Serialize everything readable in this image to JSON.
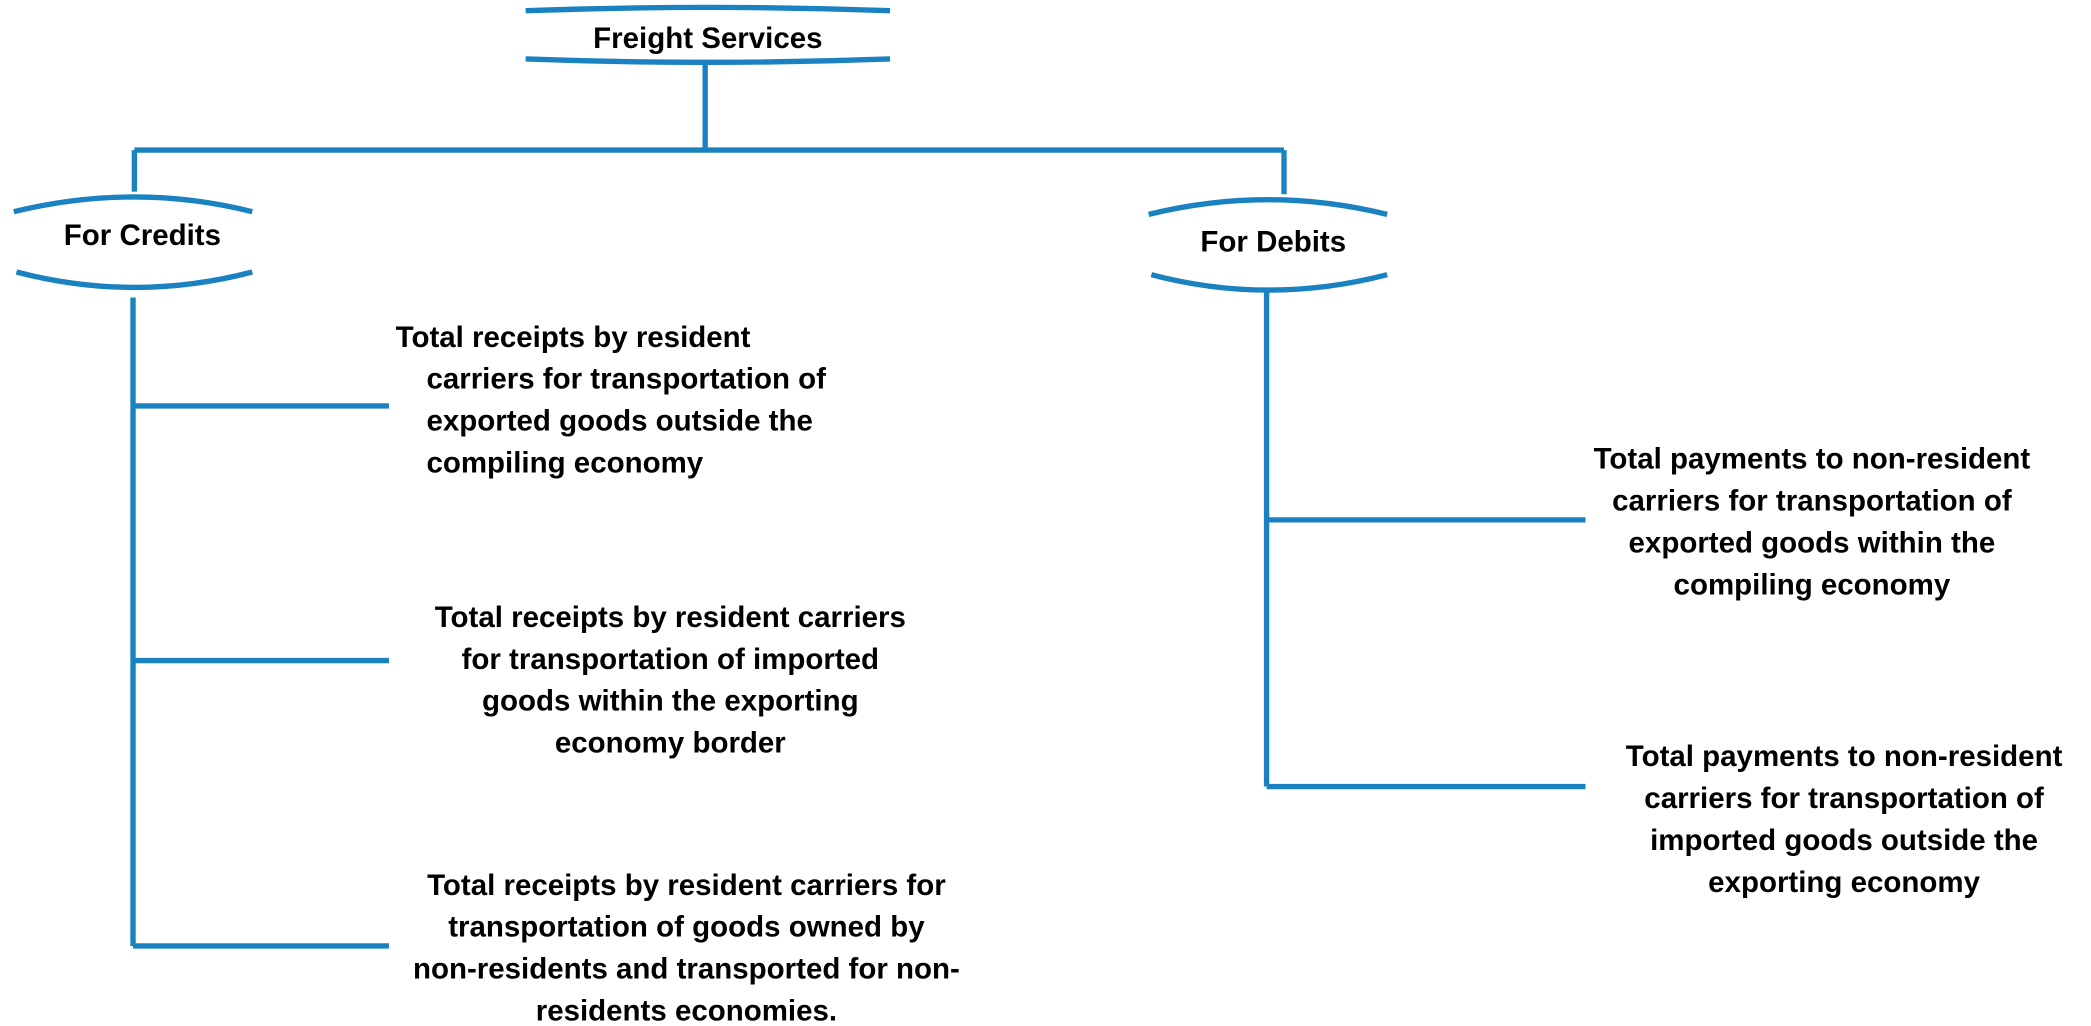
{
  "root": {
    "label": "Freight Services"
  },
  "branches": [
    {
      "label": "For Credits",
      "items": [
        {
          "lines": [
            "Total receipts by resident",
            "carriers for transportation of",
            "exported goods outside the",
            "compiling economy"
          ]
        },
        {
          "lines": [
            "Total receipts by resident carriers",
            "for transportation  of imported",
            "goods within the exporting",
            "economy  border"
          ]
        },
        {
          "lines": [
            "Total receipts by resident carriers for",
            "transportation of  goods owned by",
            "non-residents and transported for non-",
            "residents economies."
          ]
        }
      ]
    },
    {
      "label": "For Debits",
      "items": [
        {
          "lines": [
            "Total payments to non-resident",
            "carriers for  transportation of",
            "exported goods within the",
            "compiling economy"
          ]
        },
        {
          "lines": [
            "Total payments to non-resident",
            "carriers for  transportation of",
            "imported goods outside the",
            "exporting economy"
          ]
        }
      ]
    }
  ]
}
